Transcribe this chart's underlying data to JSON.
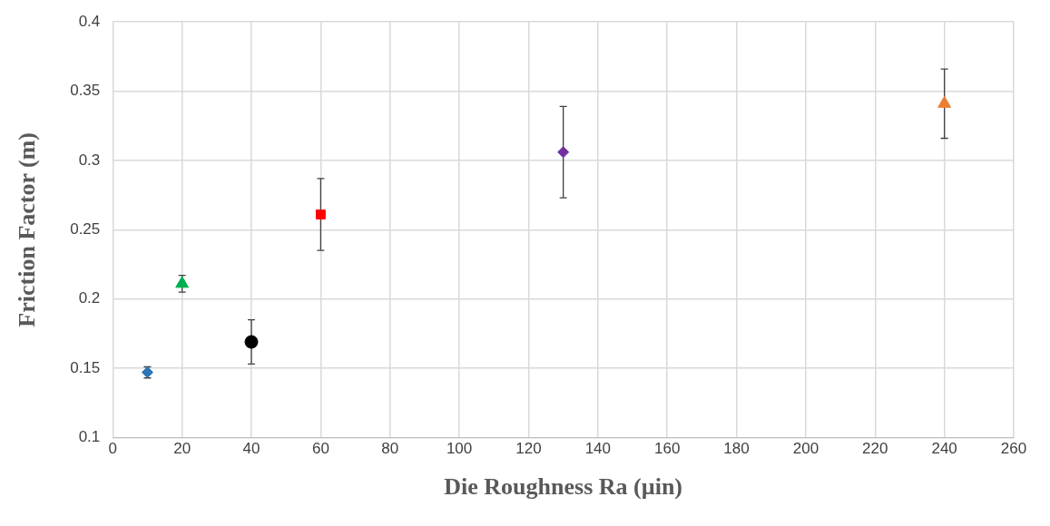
{
  "chart_data": {
    "type": "scatter",
    "xlabel": "Die Roughness Ra (µin)",
    "ylabel": "Friction Factor (m)",
    "xlim": [
      0,
      260
    ],
    "xticks": [
      0,
      20,
      40,
      60,
      80,
      100,
      120,
      140,
      160,
      180,
      200,
      220,
      240,
      260
    ],
    "ylim": [
      0.1,
      0.4
    ],
    "yticks": [
      0.1,
      0.15,
      0.2,
      0.25,
      0.3,
      0.35,
      0.4
    ],
    "grid": true,
    "legend": false,
    "series": [
      {
        "color": "#2e75b6",
        "marker": "diamond",
        "x": [
          10
        ],
        "values": [
          0.147
        ],
        "errors": [
          0.004
        ]
      },
      {
        "color": "#00b050",
        "marker": "triangle",
        "x": [
          20
        ],
        "values": [
          0.211
        ],
        "errors": [
          0.006
        ]
      },
      {
        "color": "#000000",
        "marker": "circle",
        "x": [
          40
        ],
        "values": [
          0.169
        ],
        "errors": [
          0.016
        ]
      },
      {
        "color": "#ff0000",
        "marker": "square",
        "x": [
          60
        ],
        "values": [
          0.261
        ],
        "errors": [
          0.026
        ]
      },
      {
        "color": "#7030a0",
        "marker": "diamond",
        "x": [
          130
        ],
        "values": [
          0.306
        ],
        "errors": [
          0.033
        ]
      },
      {
        "color": "#ed7d31",
        "marker": "triangle",
        "x": [
          240
        ],
        "values": [
          0.341
        ],
        "errors": [
          0.025
        ]
      }
    ]
  }
}
